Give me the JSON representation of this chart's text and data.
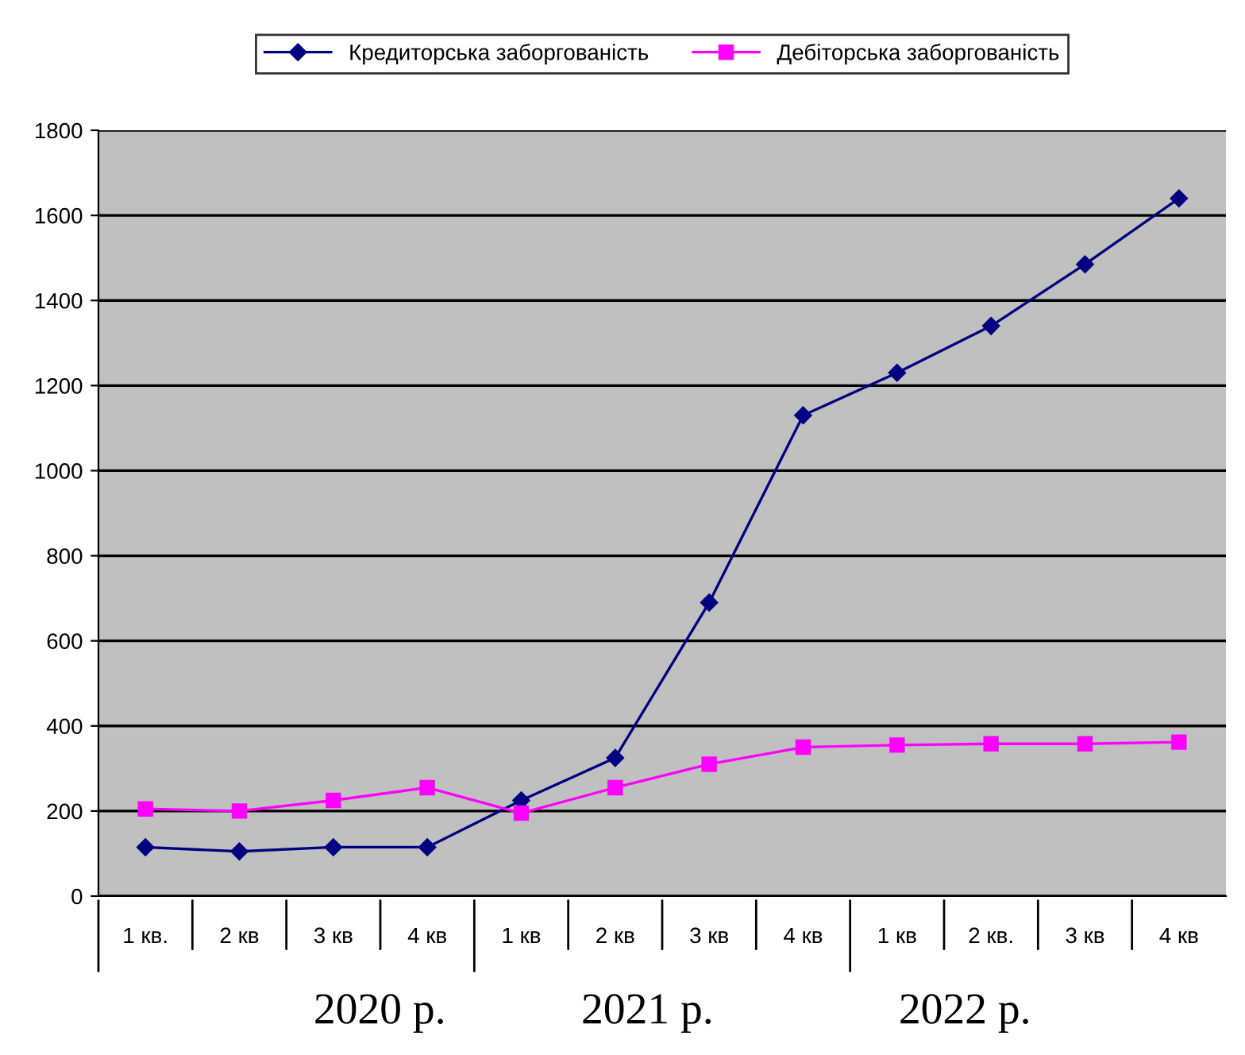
{
  "chart_data": {
    "type": "line",
    "categories": [
      "1 кв.",
      "2 кв",
      "3 кв",
      "4 кв",
      "1 кв",
      "2 кв",
      "3 кв",
      "4 кв",
      "1 кв",
      "2 кв.",
      "3 кв",
      "4 кв"
    ],
    "series": [
      {
        "name": "Кредиторська заборгованість",
        "color": "#000080",
        "marker": "diamond",
        "values": [
          115,
          105,
          115,
          115,
          225,
          325,
          690,
          1130,
          1230,
          1340,
          1485,
          1640
        ]
      },
      {
        "name": "Дебіторська заборгованість",
        "color": "#ff00ff",
        "marker": "square",
        "values": [
          205,
          200,
          225,
          255,
          195,
          255,
          310,
          350,
          355,
          358,
          358,
          362
        ]
      }
    ],
    "ylim": [
      0,
      1800
    ],
    "yticks": [
      0,
      200,
      400,
      600,
      800,
      1000,
      1200,
      1400,
      1600,
      1800
    ],
    "grid": "y",
    "legend": "top",
    "annotations": [
      "2020 р.",
      "2021 р.",
      "2022 р."
    ]
  }
}
